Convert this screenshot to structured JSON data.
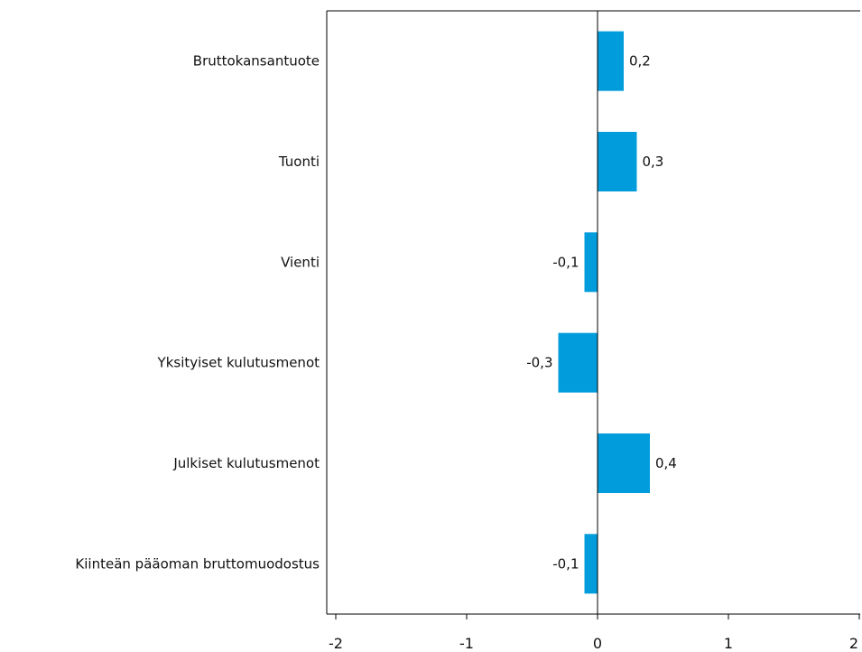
{
  "colors": {
    "bar": "#009CDB",
    "axis": "#000000",
    "text": "#111111",
    "background": "#FFFFFF"
  },
  "chart_data": {
    "type": "bar",
    "orientation": "horizontal",
    "title": "",
    "xlabel": "",
    "ylabel": "",
    "categories": [
      "Bruttokansantuote",
      "Tuonti",
      "Vienti",
      "Yksityiset kulutusmenot",
      "Julkiset kulutusmenot",
      "Kiinteän pääoman bruttomuodostus"
    ],
    "values": [
      0.2,
      0.3,
      -0.1,
      -0.3,
      0.4,
      -0.1
    ],
    "value_labels": [
      "0,2",
      "0,3",
      "-0,1",
      "-0,3",
      "0,4",
      "-0,1"
    ],
    "xlim": [
      -2,
      2
    ],
    "x_ticks": [
      -2,
      -1,
      0,
      1,
      2
    ],
    "x_tick_labels": [
      "-2",
      "-1",
      "0",
      "1",
      "2"
    ],
    "grid": false,
    "legend": "none"
  }
}
